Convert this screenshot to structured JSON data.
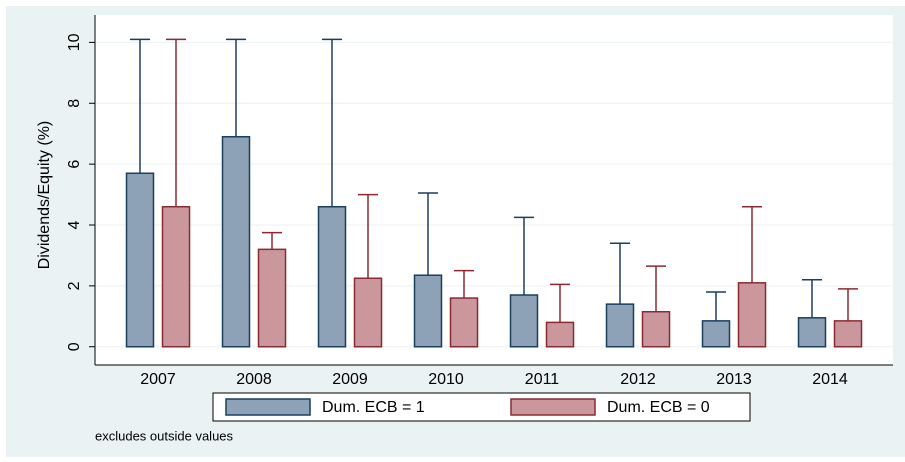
{
  "chart_data": {
    "type": "box",
    "y_label": "Dividends/Equity (%)",
    "note": "excludes outside values",
    "categories": [
      "2007",
      "2008",
      "2009",
      "2010",
      "2011",
      "2012",
      "2013",
      "2014"
    ],
    "series": [
      {
        "name": "Dum. ECB = 1",
        "color": "#8da2b7",
        "values": [
          5.7,
          6.9,
          4.6,
          2.35,
          1.7,
          1.4,
          0.85,
          0.95
        ],
        "upper_whisker": [
          10.1,
          10.1,
          10.1,
          5.05,
          4.25,
          3.4,
          1.8,
          2.2
        ]
      },
      {
        "name": "Dum. ECB = 0",
        "color": "#c9979c",
        "values": [
          4.6,
          3.2,
          2.25,
          1.6,
          0.8,
          1.15,
          2.1,
          0.85
        ],
        "upper_whisker": [
          10.1,
          3.75,
          5.0,
          2.5,
          2.05,
          2.65,
          4.6,
          1.9
        ]
      }
    ],
    "edge_colors": [
      "#1a3f5f",
      "#8b2a32"
    ],
    "ylim": [
      -0.6,
      10.9
    ],
    "yticks": [
      0,
      2,
      4,
      6,
      8,
      10
    ],
    "grid": true
  }
}
